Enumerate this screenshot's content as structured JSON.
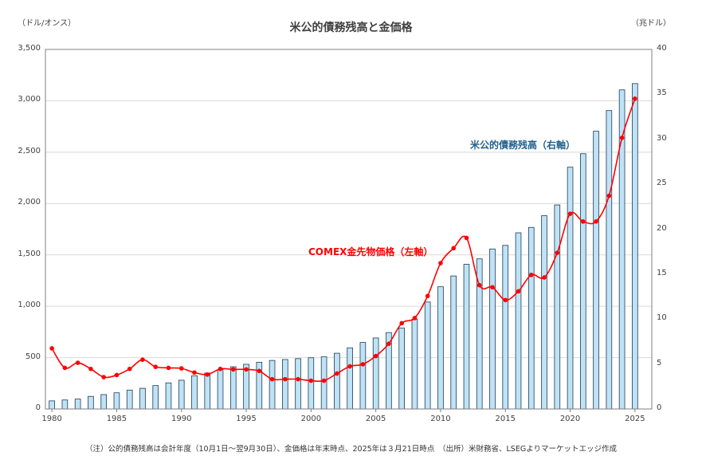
{
  "chart_data": {
    "type": "bar+line",
    "title": "米公的債務残高と金価格",
    "y_left_label": "（ドル/オンス）",
    "y_right_label": "（兆ドル）",
    "y_left_range": [
      0,
      3500
    ],
    "y_left_ticks": [
      "0",
      "500",
      "1,000",
      "1,500",
      "2,000",
      "2,500",
      "3,000",
      "3,500"
    ],
    "y_right_range": [
      0,
      40
    ],
    "y_right_ticks": [
      "0",
      "5",
      "10",
      "15",
      "20",
      "25",
      "30",
      "35",
      "40"
    ],
    "x_ticks": [
      "1980",
      "1985",
      "1990",
      "1995",
      "2000",
      "2005",
      "2010",
      "2015",
      "2020",
      "2025"
    ],
    "years": [
      1980,
      1981,
      1982,
      1983,
      1984,
      1985,
      1986,
      1987,
      1988,
      1989,
      1990,
      1991,
      1992,
      1993,
      1994,
      1995,
      1996,
      1997,
      1998,
      1999,
      2000,
      2001,
      2002,
      2003,
      2004,
      2005,
      2006,
      2007,
      2008,
      2009,
      2010,
      2011,
      2012,
      2013,
      2014,
      2015,
      2016,
      2017,
      2018,
      2019,
      2020,
      2021,
      2022,
      2023,
      2024,
      2025
    ],
    "grid": true,
    "series": [
      {
        "name": "米公的債務残高（右軸）",
        "axis": "right",
        "type": "bar",
        "color": "#bfe3f5",
        "values": [
          0.9,
          1.0,
          1.1,
          1.4,
          1.6,
          1.8,
          2.1,
          2.3,
          2.6,
          2.9,
          3.2,
          3.7,
          4.0,
          4.4,
          4.7,
          4.97,
          5.2,
          5.4,
          5.5,
          5.6,
          5.7,
          5.8,
          6.2,
          6.8,
          7.4,
          7.9,
          8.5,
          9.0,
          10.0,
          11.9,
          13.6,
          14.8,
          16.1,
          16.7,
          17.8,
          18.2,
          19.6,
          20.2,
          21.5,
          22.7,
          26.9,
          28.4,
          30.9,
          33.2,
          35.5,
          36.2
        ]
      },
      {
        "name": "COMEX金先物価格（左軸）",
        "axis": "left",
        "type": "line",
        "color": "#ff0000",
        "values": [
          590,
          400,
          450,
          390,
          310,
          330,
          390,
          480,
          410,
          400,
          395,
          355,
          335,
          390,
          385,
          385,
          370,
          290,
          290,
          290,
          275,
          275,
          345,
          415,
          435,
          515,
          635,
          835,
          885,
          1100,
          1420,
          1565,
          1665,
          1205,
          1185,
          1060,
          1145,
          1305,
          1280,
          1520,
          1900,
          1825,
          1825,
          2075,
          2640,
          3020
        ]
      }
    ],
    "annotations": [
      "米公的債務残高（右軸）",
      "COMEX金先物価格（左軸）"
    ],
    "note": "（注）公的債務残高は会計年度（10月1日～翌9月30日）、金価格は年末時点、2025年は３月21日時点　（出所）米財務省、LSEGよりマーケットエッジ作成"
  }
}
